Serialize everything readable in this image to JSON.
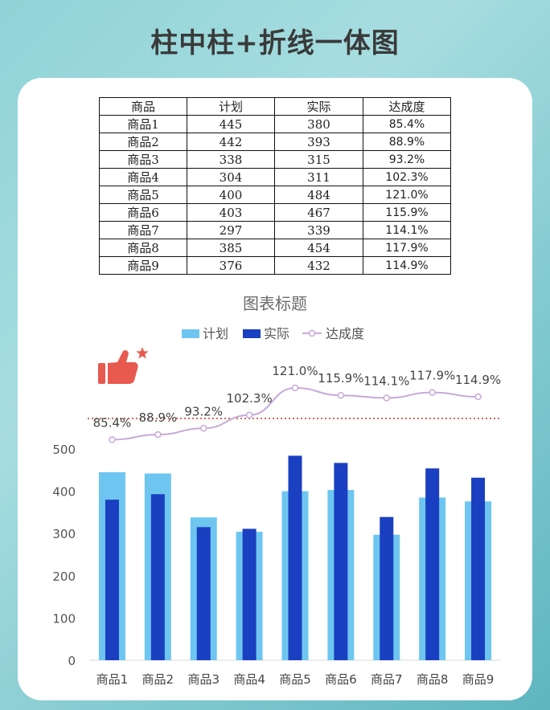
{
  "headline": "柱中柱+折线一体图",
  "table": {
    "headers": [
      "商品",
      "计划",
      "实际",
      "达成度"
    ],
    "rows": [
      [
        "商品1",
        "445",
        "380",
        "85.4%"
      ],
      [
        "商品2",
        "442",
        "393",
        "88.9%"
      ],
      [
        "商品3",
        "338",
        "315",
        "93.2%"
      ],
      [
        "商品4",
        "304",
        "311",
        "102.3%"
      ],
      [
        "商品5",
        "400",
        "484",
        "121.0%"
      ],
      [
        "商品6",
        "403",
        "467",
        "115.9%"
      ],
      [
        "商品7",
        "297",
        "339",
        "114.1%"
      ],
      [
        "商品8",
        "385",
        "454",
        "117.9%"
      ],
      [
        "商品9",
        "376",
        "432",
        "114.9%"
      ]
    ]
  },
  "icons": {
    "thumbs_up": "thumbs-up-icon",
    "star": "star-icon"
  },
  "colors": {
    "plan": "#6ec6f0",
    "actual": "#1a3fc0",
    "rate_line": "#c9a8d8",
    "target_line": "#c0392b"
  },
  "chart_data": {
    "type": "bar",
    "title": "图表标题",
    "categories": [
      "商品1",
      "商品2",
      "商品3",
      "商品4",
      "商品5",
      "商品6",
      "商品7",
      "商品8",
      "商品9"
    ],
    "series": [
      {
        "name": "计划",
        "type": "bar",
        "values": [
          445,
          442,
          338,
          304,
          400,
          403,
          297,
          385,
          376
        ]
      },
      {
        "name": "实际",
        "type": "bar",
        "values": [
          380,
          393,
          315,
          311,
          484,
          467,
          339,
          454,
          432
        ]
      },
      {
        "name": "达成度",
        "type": "line",
        "values": [
          85.4,
          88.9,
          93.2,
          102.3,
          121.0,
          115.9,
          114.1,
          117.9,
          114.9
        ],
        "labels": [
          "85.4%",
          "88.9%",
          "93.2%",
          "102.3%",
          "121.0%",
          "115.9%",
          "114.1%",
          "117.9%",
          "114.9%"
        ]
      }
    ],
    "ylim": [
      0,
      500
    ],
    "yticks": [
      "0",
      "100",
      "200",
      "300",
      "400",
      "500"
    ],
    "reference_line": {
      "value": 100,
      "unit": "%"
    },
    "legend": "top",
    "grid": false
  }
}
